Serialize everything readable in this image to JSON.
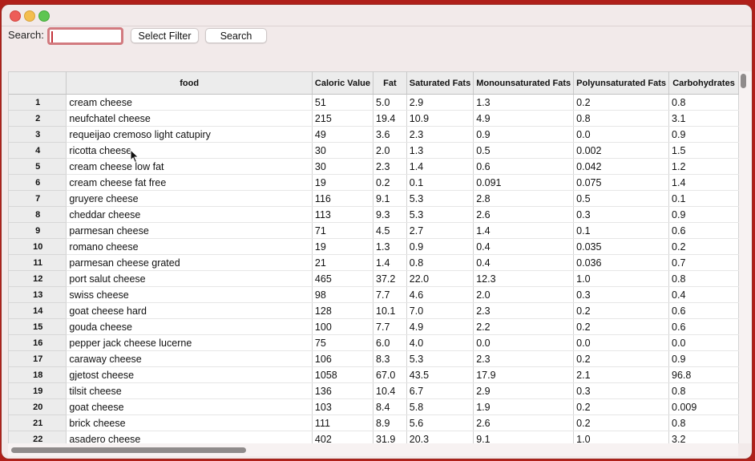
{
  "toolbar": {
    "search_label": "Search:",
    "search_value": "",
    "filter_button": "Select Filter",
    "search_button": "Search"
  },
  "table": {
    "columns": [
      "",
      "food",
      "Caloric Value",
      "Fat",
      "Saturated Fats",
      "Monounsaturated Fats",
      "Polyunsaturated Fats",
      "Carbohydrates"
    ],
    "rows": [
      [
        "1",
        "cream cheese",
        "51",
        "5.0",
        "2.9",
        "1.3",
        "0.2",
        "0.8"
      ],
      [
        "2",
        "neufchatel cheese",
        "215",
        "19.4",
        "10.9",
        "4.9",
        "0.8",
        "3.1"
      ],
      [
        "3",
        "requeijao cremoso light catupiry",
        "49",
        "3.6",
        "2.3",
        "0.9",
        "0.0",
        "0.9"
      ],
      [
        "4",
        "ricotta cheese",
        "30",
        "2.0",
        "1.3",
        "0.5",
        "0.002",
        "1.5"
      ],
      [
        "5",
        "cream cheese low fat",
        "30",
        "2.3",
        "1.4",
        "0.6",
        "0.042",
        "1.2"
      ],
      [
        "6",
        "cream cheese fat free",
        "19",
        "0.2",
        "0.1",
        "0.091",
        "0.075",
        "1.4"
      ],
      [
        "7",
        "gruyere cheese",
        "116",
        "9.1",
        "5.3",
        "2.8",
        "0.5",
        "0.1"
      ],
      [
        "8",
        "cheddar cheese",
        "113",
        "9.3",
        "5.3",
        "2.6",
        "0.3",
        "0.9"
      ],
      [
        "9",
        "parmesan cheese",
        "71",
        "4.5",
        "2.7",
        "1.4",
        "0.1",
        "0.6"
      ],
      [
        "10",
        "romano cheese",
        "19",
        "1.3",
        "0.9",
        "0.4",
        "0.035",
        "0.2"
      ],
      [
        "11",
        "parmesan cheese grated",
        "21",
        "1.4",
        "0.8",
        "0.4",
        "0.036",
        "0.7"
      ],
      [
        "12",
        "port salut cheese",
        "465",
        "37.2",
        "22.0",
        "12.3",
        "1.0",
        "0.8"
      ],
      [
        "13",
        "swiss cheese",
        "98",
        "7.7",
        "4.6",
        "2.0",
        "0.3",
        "0.4"
      ],
      [
        "14",
        "goat cheese hard",
        "128",
        "10.1",
        "7.0",
        "2.3",
        "0.2",
        "0.6"
      ],
      [
        "15",
        "gouda cheese",
        "100",
        "7.7",
        "4.9",
        "2.2",
        "0.2",
        "0.6"
      ],
      [
        "16",
        "pepper jack cheese lucerne",
        "75",
        "6.0",
        "4.0",
        "0.0",
        "0.0",
        "0.0"
      ],
      [
        "17",
        "caraway cheese",
        "106",
        "8.3",
        "5.3",
        "2.3",
        "0.2",
        "0.9"
      ],
      [
        "18",
        "gjetost cheese",
        "1058",
        "67.0",
        "43.5",
        "17.9",
        "2.1",
        "96.8"
      ],
      [
        "19",
        "tilsit cheese",
        "136",
        "10.4",
        "6.7",
        "2.9",
        "0.3",
        "0.8"
      ],
      [
        "20",
        "goat cheese",
        "103",
        "8.4",
        "5.8",
        "1.9",
        "0.2",
        "0.009"
      ],
      [
        "21",
        "brick cheese",
        "111",
        "8.9",
        "5.6",
        "2.6",
        "0.2",
        "0.8"
      ],
      [
        "22",
        "asadero cheese",
        "402",
        "31.9",
        "20.3",
        "9.1",
        "1.0",
        "3.2"
      ]
    ]
  },
  "icons": {
    "close": "red-circle",
    "minimize": "yellow-circle",
    "zoom": "green-circle",
    "pointer": "arrow-cursor"
  },
  "colors": {
    "desktop": "#b0201a",
    "window": "#f2eaea",
    "focus_ring": "#d27a7f",
    "header_bg": "#ececec"
  }
}
